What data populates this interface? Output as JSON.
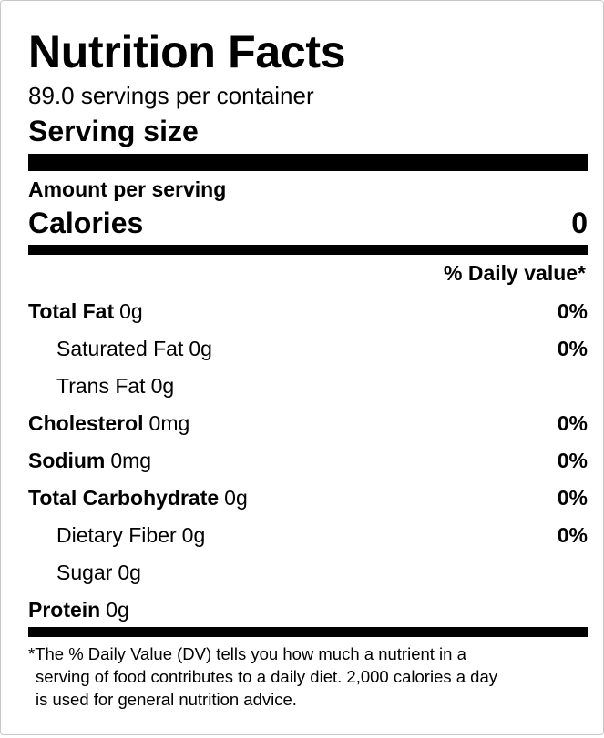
{
  "label": {
    "title": "Nutrition Facts",
    "servings_per_container": "89.0 servings per container",
    "serving_size_label": "Serving size",
    "amount_per_serving": "Amount per serving",
    "calories_label": "Calories",
    "calories_value": "0",
    "daily_value_header": "% Daily value*",
    "nutrients": [
      {
        "name": "Total Fat",
        "amount": "0g",
        "dv": "0%",
        "bold": true,
        "sub": false
      },
      {
        "name": "Saturated Fat",
        "amount": "0g",
        "dv": "0%",
        "bold": false,
        "sub": true
      },
      {
        "name": "Trans Fat",
        "amount": "0g",
        "dv": "",
        "bold": false,
        "sub": true
      },
      {
        "name": "Cholesterol",
        "amount": "0mg",
        "dv": "0%",
        "bold": true,
        "sub": false
      },
      {
        "name": "Sodium",
        "amount": "0mg",
        "dv": "0%",
        "bold": true,
        "sub": false
      },
      {
        "name": "Total Carbohydrate",
        "amount": "0g",
        "dv": "0%",
        "bold": true,
        "sub": false
      },
      {
        "name": "Dietary Fiber",
        "amount": "0g",
        "dv": "0%",
        "bold": false,
        "sub": true
      },
      {
        "name": "Sugar",
        "amount": "0g",
        "dv": "",
        "bold": false,
        "sub": true
      },
      {
        "name": "Protein",
        "amount": "0g",
        "dv": "",
        "bold": true,
        "sub": false
      }
    ],
    "footnote_lines": [
      "*The % Daily Value (DV) tells you how much a nutrient in a",
      "serving of food contributes to a daily diet. 2,000 calories a day",
      "is used for general nutrition advice."
    ]
  }
}
